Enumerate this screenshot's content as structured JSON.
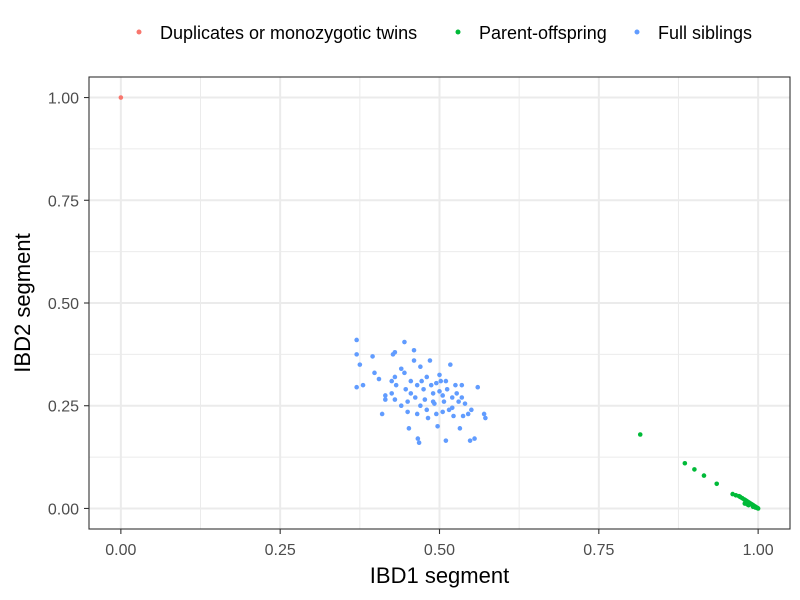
{
  "chart_data": {
    "type": "scatter",
    "xlabel": "IBD1 segment",
    "ylabel": "IBD2 segment",
    "xlim": [
      -0.05,
      1.05
    ],
    "ylim": [
      -0.05,
      1.05
    ],
    "x_ticks": [
      0,
      0.25,
      0.5,
      0.75,
      1
    ],
    "x_tick_labels": [
      "0.00",
      "0.25",
      "0.50",
      "0.75",
      "1.00"
    ],
    "y_ticks": [
      0,
      0.25,
      0.5,
      0.75,
      1
    ],
    "y_tick_labels": [
      "0.00",
      "0.25",
      "0.50",
      "0.75",
      "1.00"
    ],
    "grid": true,
    "legend_position": "top",
    "series": [
      {
        "name": "Duplicates or monozygotic twins",
        "color": "#F8766D",
        "points": [
          [
            0.0,
            1.0
          ]
        ]
      },
      {
        "name": "Parent-offspring",
        "color": "#00BA38",
        "points": [
          [
            0.815,
            0.18
          ],
          [
            0.885,
            0.11
          ],
          [
            0.9,
            0.095
          ],
          [
            0.915,
            0.08
          ],
          [
            0.935,
            0.06
          ],
          [
            0.96,
            0.035
          ],
          [
            0.965,
            0.032
          ],
          [
            0.97,
            0.03
          ],
          [
            0.972,
            0.028
          ],
          [
            0.975,
            0.025
          ],
          [
            0.978,
            0.022
          ],
          [
            0.98,
            0.02
          ],
          [
            0.982,
            0.018
          ],
          [
            0.984,
            0.016
          ],
          [
            0.986,
            0.014
          ],
          [
            0.988,
            0.012
          ],
          [
            0.99,
            0.01
          ],
          [
            0.991,
            0.009
          ],
          [
            0.993,
            0.007
          ],
          [
            0.995,
            0.005
          ],
          [
            0.997,
            0.003
          ],
          [
            0.999,
            0.001
          ],
          [
            1.0,
            0.0
          ],
          [
            0.985,
            0.008
          ],
          [
            0.992,
            0.004
          ],
          [
            0.996,
            0.002
          ],
          [
            0.979,
            0.012
          ],
          [
            0.983,
            0.01
          ]
        ]
      },
      {
        "name": "Full siblings",
        "color": "#619CFF",
        "points": [
          [
            0.37,
            0.41
          ],
          [
            0.37,
            0.375
          ],
          [
            0.375,
            0.35
          ],
          [
            0.37,
            0.295
          ],
          [
            0.38,
            0.3
          ],
          [
            0.395,
            0.37
          ],
          [
            0.398,
            0.33
          ],
          [
            0.405,
            0.315
          ],
          [
            0.41,
            0.23
          ],
          [
            0.415,
            0.265
          ],
          [
            0.415,
            0.275
          ],
          [
            0.425,
            0.28
          ],
          [
            0.425,
            0.31
          ],
          [
            0.427,
            0.375
          ],
          [
            0.43,
            0.38
          ],
          [
            0.43,
            0.32
          ],
          [
            0.432,
            0.3
          ],
          [
            0.44,
            0.25
          ],
          [
            0.445,
            0.405
          ],
          [
            0.445,
            0.33
          ],
          [
            0.447,
            0.29
          ],
          [
            0.45,
            0.26
          ],
          [
            0.452,
            0.195
          ],
          [
            0.455,
            0.31
          ],
          [
            0.46,
            0.36
          ],
          [
            0.46,
            0.385
          ],
          [
            0.462,
            0.27
          ],
          [
            0.465,
            0.23
          ],
          [
            0.466,
            0.17
          ],
          [
            0.468,
            0.16
          ],
          [
            0.47,
            0.345
          ],
          [
            0.472,
            0.31
          ],
          [
            0.475,
            0.29
          ],
          [
            0.477,
            0.265
          ],
          [
            0.48,
            0.24
          ],
          [
            0.482,
            0.22
          ],
          [
            0.485,
            0.36
          ],
          [
            0.487,
            0.3
          ],
          [
            0.49,
            0.28
          ],
          [
            0.492,
            0.255
          ],
          [
            0.495,
            0.23
          ],
          [
            0.497,
            0.2
          ],
          [
            0.5,
            0.325
          ],
          [
            0.502,
            0.31
          ],
          [
            0.505,
            0.275
          ],
          [
            0.507,
            0.26
          ],
          [
            0.51,
            0.165
          ],
          [
            0.512,
            0.29
          ],
          [
            0.515,
            0.24
          ],
          [
            0.517,
            0.35
          ],
          [
            0.52,
            0.27
          ],
          [
            0.522,
            0.225
          ],
          [
            0.525,
            0.3
          ],
          [
            0.527,
            0.28
          ],
          [
            0.53,
            0.26
          ],
          [
            0.532,
            0.195
          ],
          [
            0.535,
            0.3
          ],
          [
            0.537,
            0.225
          ],
          [
            0.54,
            0.255
          ],
          [
            0.545,
            0.23
          ],
          [
            0.548,
            0.165
          ],
          [
            0.55,
            0.24
          ],
          [
            0.555,
            0.17
          ],
          [
            0.56,
            0.295
          ],
          [
            0.57,
            0.23
          ],
          [
            0.572,
            0.22
          ],
          [
            0.44,
            0.34
          ],
          [
            0.455,
            0.28
          ],
          [
            0.48,
            0.32
          ],
          [
            0.495,
            0.305
          ],
          [
            0.51,
            0.31
          ],
          [
            0.52,
            0.245
          ],
          [
            0.47,
            0.25
          ],
          [
            0.49,
            0.26
          ],
          [
            0.505,
            0.235
          ],
          [
            0.535,
            0.27
          ],
          [
            0.45,
            0.235
          ],
          [
            0.43,
            0.265
          ],
          [
            0.465,
            0.3
          ],
          [
            0.5,
            0.285
          ]
        ]
      }
    ]
  }
}
